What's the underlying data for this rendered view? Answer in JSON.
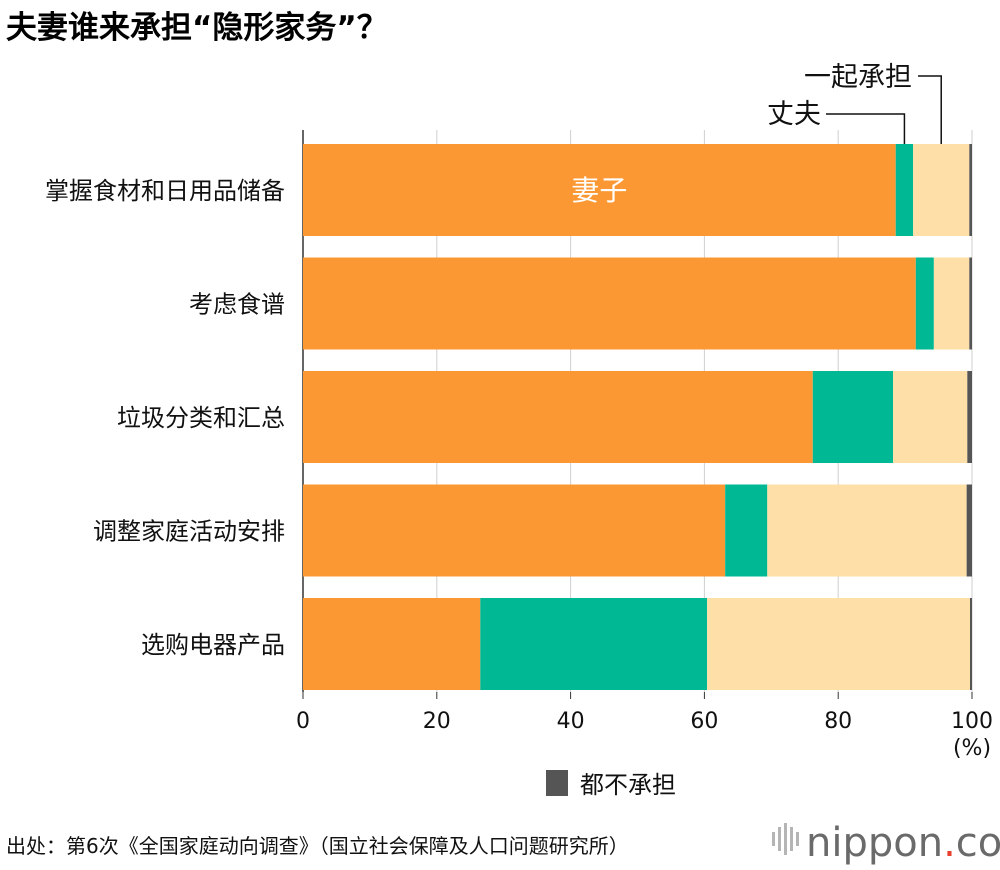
{
  "chart_data": {
    "type": "bar",
    "orientation": "horizontal",
    "stacked": true,
    "title": "夫妻谁来承担“隐形家务”？",
    "categories": [
      "掌握食材和日用品储备",
      "考虑食谱",
      "垃圾分类和汇总",
      "调整家庭活动安排",
      "选购电器产品"
    ],
    "series": [
      {
        "name": "妻子",
        "color": "#fb9833",
        "values": [
          88.6,
          91.6,
          76.2,
          63.1,
          26.5
        ]
      },
      {
        "name": "丈夫",
        "color": "#00b894",
        "values": [
          2.6,
          2.7,
          12.0,
          6.3,
          33.9
        ]
      },
      {
        "name": "一起承担",
        "color": "#fddfa7",
        "values": [
          8.4,
          5.3,
          11.1,
          29.8,
          39.3
        ]
      },
      {
        "name": "都不承担",
        "color": "#555555",
        "values": [
          0.4,
          0.4,
          0.7,
          0.8,
          0.3
        ]
      }
    ],
    "x_ticks": [
      "0",
      "20",
      "40",
      "60",
      "80",
      "100"
    ],
    "xlim": [
      0,
      100
    ],
    "unit": "(%)",
    "grid": true,
    "legend": "bottom-center",
    "source": "出处：第6次《全国家庭动向调查》（国立社会保障及人口问题研究所）"
  },
  "brand": {
    "name": "nippon",
    "dot": ".",
    "suffix": "com"
  }
}
